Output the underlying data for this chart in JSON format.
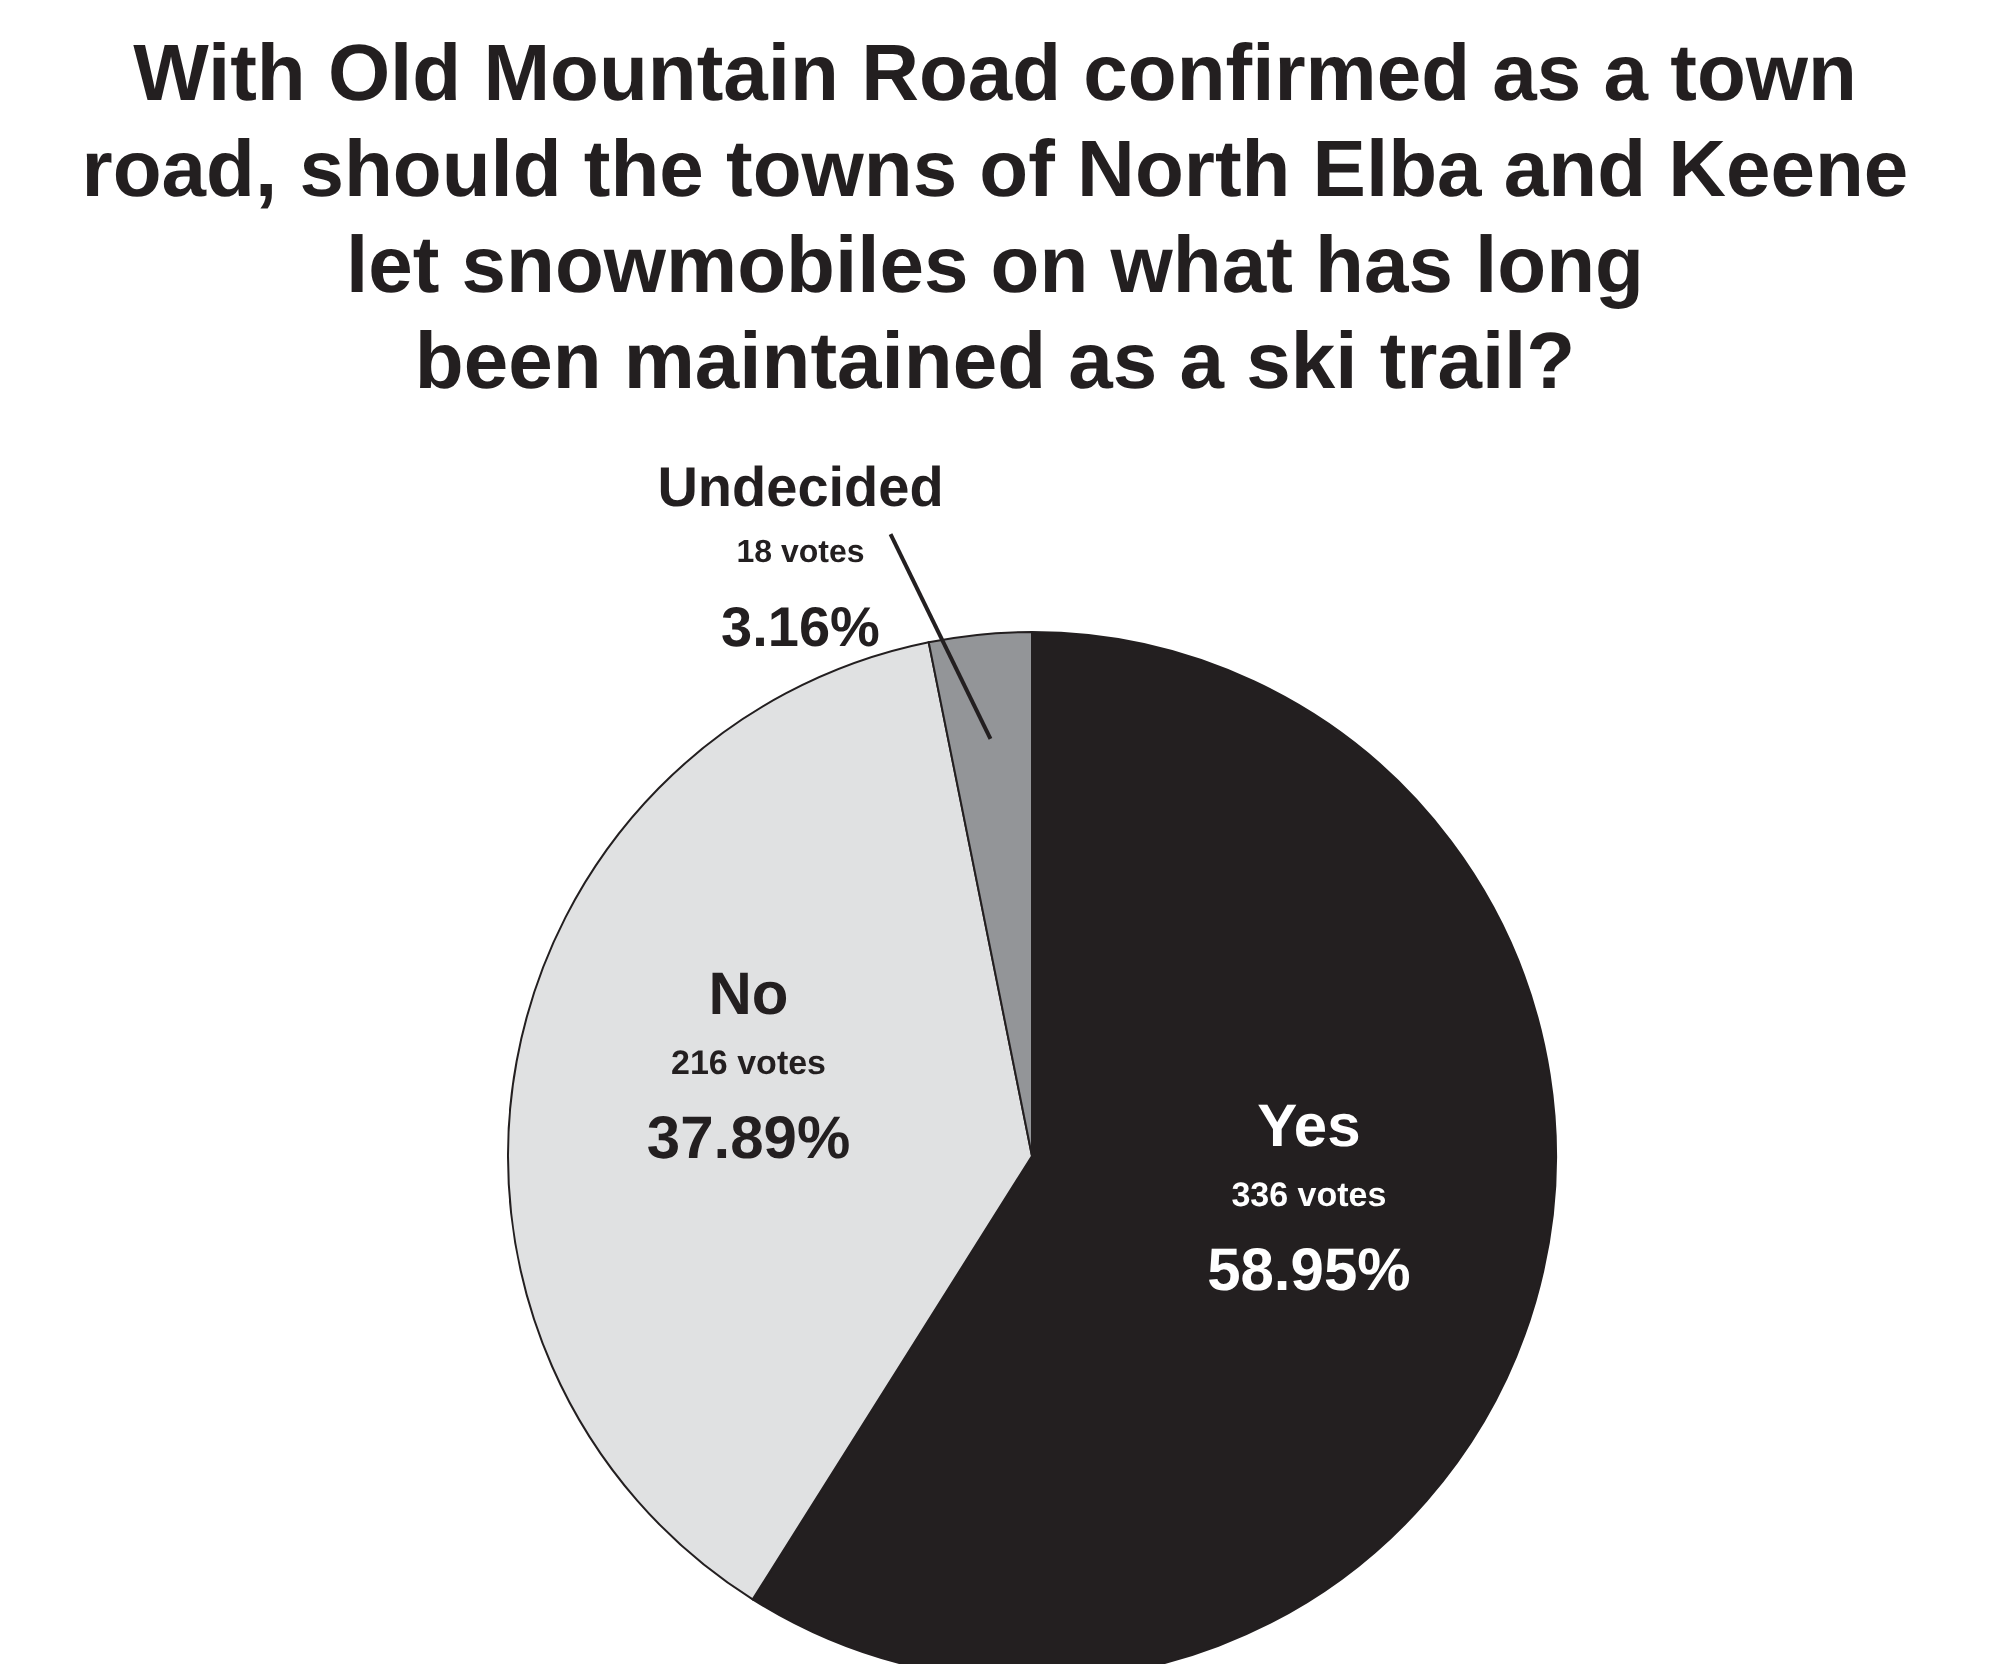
{
  "chart_data": {
    "type": "pie",
    "title": "With Old Mountain Road confirmed as a town\nroad, should the towns of North Elba and Keene\nlet snowmobiles on what has long\nbeen maintained as a ski trail?",
    "categories": [
      "Yes",
      "No",
      "Undecided"
    ],
    "values": [
      336,
      216,
      18
    ],
    "value_labels": [
      "336 votes\n58.95%",
      "216 votes\n37.89%",
      "18 votes\n3.16%"
    ],
    "colors": [
      "#231f20",
      "#e0e1e2",
      "#939598"
    ],
    "legend": false
  }
}
